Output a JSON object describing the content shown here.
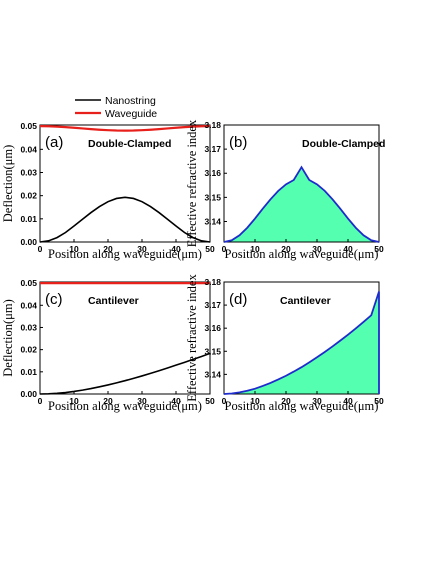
{
  "chart_data": [
    {
      "id": "a",
      "type": "line",
      "panel_label": "(a)",
      "title": "Double-Clamped",
      "xlabel": "Position along waveguide(μm)",
      "ylabel": "Deflection(μm)",
      "xlim": [
        0,
        50
      ],
      "ylim": [
        0,
        0.0505
      ],
      "xticks": [
        "0",
        "10",
        "20",
        "30",
        "40",
        "50"
      ],
      "yticks": [
        "0.00",
        "0.01",
        "0.02",
        "0.03",
        "0.04",
        "0.05"
      ],
      "legend_position": "top-left, above plot",
      "series": [
        {
          "name": "Nanostring",
          "color": "#000000",
          "x": [
            0,
            2.5,
            5,
            7.5,
            10,
            12.5,
            15,
            17.5,
            20,
            22.5,
            25,
            27.5,
            30,
            32.5,
            35,
            37.5,
            40,
            42.5,
            45,
            47.5,
            50
          ],
          "y": [
            0,
            0.0005,
            0.0019,
            0.0041,
            0.0069,
            0.0098,
            0.0127,
            0.0153,
            0.0174,
            0.0188,
            0.0193,
            0.0188,
            0.0174,
            0.0153,
            0.0127,
            0.0098,
            0.0069,
            0.0041,
            0.0019,
            0.0005,
            0
          ]
        },
        {
          "name": "Waveguide",
          "color": "#e8201c",
          "x": [
            0,
            2.5,
            5,
            7.5,
            10,
            12.5,
            15,
            17.5,
            20,
            22.5,
            25,
            27.5,
            30,
            32.5,
            35,
            37.5,
            40,
            42.5,
            45,
            47.5,
            50
          ],
          "y": [
            0.05,
            0.04995,
            0.0498,
            0.04958,
            0.0493,
            0.04901,
            0.04872,
            0.04846,
            0.04826,
            0.04812,
            0.04807,
            0.04812,
            0.04826,
            0.04846,
            0.04872,
            0.04901,
            0.0493,
            0.04958,
            0.0498,
            0.04995,
            0.05
          ]
        }
      ]
    },
    {
      "id": "b",
      "type": "area",
      "panel_label": "(b)",
      "title": "Double-Clamped",
      "xlabel": "Position along waveguide(μm)",
      "ylabel": "Effective refractive index",
      "xlim": [
        0,
        50
      ],
      "ylim": [
        3.1315,
        3.18
      ],
      "xticks": [
        "0",
        "10",
        "20",
        "30",
        "40",
        "50"
      ],
      "yticks": [
        "3.14",
        "3.15",
        "3.16",
        "3.17",
        "3.18"
      ],
      "line_color": "#1f2ccc",
      "fill_color": "#55ffb0",
      "x": [
        0,
        2.5,
        5,
        7.5,
        10,
        12.5,
        15,
        17.5,
        20,
        22.5,
        25,
        27.5,
        30,
        32.5,
        35,
        37.5,
        40,
        42.5,
        45,
        47.5,
        50
      ],
      "y": [
        3.1315,
        3.1322,
        3.1343,
        3.1374,
        3.1412,
        3.1453,
        3.1492,
        3.1527,
        3.1554,
        3.1572,
        3.1625,
        3.1572,
        3.1554,
        3.1527,
        3.1492,
        3.1453,
        3.1412,
        3.1374,
        3.1343,
        3.1322,
        3.1315
      ]
    },
    {
      "id": "c",
      "type": "line",
      "panel_label": "(c)",
      "title": "Cantilever",
      "xlabel": "Position along waveguide(μm)",
      "ylabel": "Deflection(μm)",
      "xlim": [
        0,
        50
      ],
      "ylim": [
        0,
        0.0505
      ],
      "xticks": [
        "0",
        "10",
        "20",
        "30",
        "40",
        "50"
      ],
      "yticks": [
        "0.00",
        "0.01",
        "0.02",
        "0.03",
        "0.04",
        "0.05"
      ],
      "series": [
        {
          "name": "Nanostring",
          "color": "#000000",
          "x": [
            0,
            2.5,
            5,
            7.5,
            10,
            12.5,
            15,
            17.5,
            20,
            22.5,
            25,
            27.5,
            30,
            32.5,
            35,
            37.5,
            40,
            42.5,
            45,
            47.5,
            50
          ],
          "y": [
            0,
            8e-05,
            0.0003,
            0.00066,
            0.00115,
            0.00175,
            0.00245,
            0.00324,
            0.0041,
            0.00503,
            0.006,
            0.00705,
            0.00815,
            0.0093,
            0.0105,
            0.01172,
            0.013,
            0.01428,
            0.0156,
            0.01692,
            0.0183
          ]
        },
        {
          "name": "Waveguide",
          "color": "#e8201c",
          "x": [
            0,
            50
          ],
          "y": [
            0.05,
            0.05
          ]
        }
      ]
    },
    {
      "id": "d",
      "type": "area",
      "panel_label": "(d)",
      "title": "Cantilever",
      "xlabel": "Position along waveguide(μm)",
      "ylabel": "Effective refractive index",
      "xlim": [
        0,
        50
      ],
      "ylim": [
        3.1315,
        3.18
      ],
      "xticks": [
        "0",
        "10",
        "20",
        "30",
        "40",
        "50"
      ],
      "yticks": [
        "3.14",
        "3.15",
        "3.16",
        "3.17",
        "3.18"
      ],
      "line_color": "#1f2ccc",
      "fill_color": "#55ffb0",
      "x": [
        0,
        2.5,
        5,
        7.5,
        10,
        12.5,
        15,
        17.5,
        20,
        22.5,
        25,
        27.5,
        30,
        32.5,
        35,
        37.5,
        40,
        42.5,
        45,
        47.5,
        50
      ],
      "y": [
        3.1315,
        3.1317,
        3.1322,
        3.1329,
        3.1338,
        3.135,
        3.1363,
        3.1378,
        3.1394,
        3.1412,
        3.1431,
        3.1452,
        3.1474,
        3.1497,
        3.1521,
        3.1546,
        3.1572,
        3.1599,
        3.1627,
        3.1656,
        3.1759
      ]
    }
  ]
}
